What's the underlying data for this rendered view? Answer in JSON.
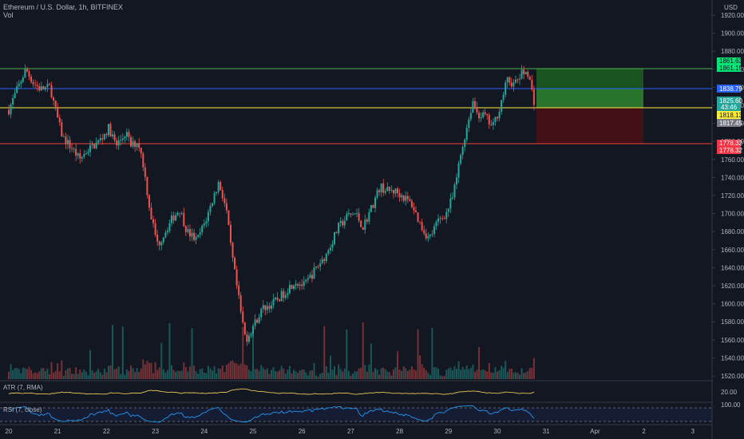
{
  "header": {
    "symbol_title": "Ethereum / U.S. Dollar, 1h, BITFINEX",
    "volume_label": "Vol"
  },
  "axis": {
    "currency": "USD",
    "price_ticks": [
      "1920.00",
      "1900.00",
      "1880.00",
      "1860.00",
      "1840.00",
      "1820.00",
      "1800.00",
      "1780.00",
      "1760.00",
      "1740.00",
      "1720.00",
      "1700.00",
      "1680.00",
      "1660.00",
      "1640.00",
      "1620.00",
      "1600.00",
      "1580.00",
      "1560.00",
      "1540.00",
      "1520.00"
    ],
    "date_ticks": [
      "20",
      "21",
      "22",
      "23",
      "24",
      "25",
      "26",
      "27",
      "28",
      "29",
      "30",
      "31",
      "Apr",
      "2",
      "3"
    ]
  },
  "price_tags": {
    "target_1": "1861.63",
    "target_2": "1861.15",
    "blue_level": "1838.79",
    "current": "1825.60",
    "countdown": "43:46",
    "entry": "1818.13",
    "gray": "1817.45",
    "stop_1": "1778.32",
    "stop_2": "1778.32"
  },
  "indicators": {
    "atr_label": "ATR (7, RMA)",
    "atr_value": "20.00",
    "rsi_label": "RSI (7, close)",
    "rsi_value": "100.00"
  },
  "colors": {
    "background": "#131722",
    "up": "#26a69a",
    "down": "#ef5350",
    "target_line": "#4caf50",
    "blue_line": "#2962ff",
    "entry_line": "#ffeb3b",
    "stop_line": "#f44336",
    "profit_zone": "#1b5e20",
    "loss_zone": "#4a1016",
    "atr_line": "#e8c55a",
    "rsi_line": "#2196f3"
  },
  "chart_data": {
    "type": "candlestick",
    "symbol": "ETHUSD",
    "interval": "1h",
    "price_range": [
      1520,
      1925
    ],
    "levels": {
      "target": 1861.63,
      "blue": 1838.79,
      "entry": 1818.13,
      "stop": 1778.32
    },
    "path": [
      [
        20.0,
        1815
      ],
      [
        20.15,
        1835
      ],
      [
        20.35,
        1860
      ],
      [
        20.5,
        1845
      ],
      [
        20.65,
        1838
      ],
      [
        20.85,
        1840
      ],
      [
        20.95,
        1815
      ],
      [
        21.1,
        1785
      ],
      [
        21.3,
        1772
      ],
      [
        21.45,
        1760
      ],
      [
        21.6,
        1770
      ],
      [
        21.85,
        1780
      ],
      [
        22.05,
        1795
      ],
      [
        22.2,
        1775
      ],
      [
        22.4,
        1790
      ],
      [
        22.5,
        1775
      ],
      [
        22.65,
        1780
      ],
      [
        22.75,
        1755
      ],
      [
        22.9,
        1700
      ],
      [
        23.05,
        1665
      ],
      [
        23.2,
        1680
      ],
      [
        23.35,
        1695
      ],
      [
        23.5,
        1705
      ],
      [
        23.65,
        1680
      ],
      [
        23.85,
        1670
      ],
      [
        24.05,
        1695
      ],
      [
        24.2,
        1720
      ],
      [
        24.3,
        1735
      ],
      [
        24.45,
        1705
      ],
      [
        24.55,
        1660
      ],
      [
        24.65,
        1625
      ],
      [
        24.75,
        1590
      ],
      [
        24.85,
        1560
      ],
      [
        25.0,
        1575
      ],
      [
        25.2,
        1595
      ],
      [
        25.4,
        1600
      ],
      [
        25.6,
        1610
      ],
      [
        25.85,
        1625
      ],
      [
        26.05,
        1620
      ],
      [
        26.3,
        1640
      ],
      [
        26.5,
        1655
      ],
      [
        26.75,
        1685
      ],
      [
        26.95,
        1698
      ],
      [
        27.1,
        1700
      ],
      [
        27.25,
        1685
      ],
      [
        27.45,
        1710
      ],
      [
        27.6,
        1730
      ],
      [
        27.75,
        1725
      ],
      [
        27.9,
        1725
      ],
      [
        28.05,
        1720
      ],
      [
        28.25,
        1710
      ],
      [
        28.45,
        1685
      ],
      [
        28.6,
        1672
      ],
      [
        28.8,
        1693
      ],
      [
        28.95,
        1700
      ],
      [
        29.1,
        1720
      ],
      [
        29.25,
        1765
      ],
      [
        29.35,
        1790
      ],
      [
        29.5,
        1825
      ],
      [
        29.6,
        1810
      ],
      [
        29.75,
        1808
      ],
      [
        29.9,
        1795
      ],
      [
        30.05,
        1818
      ],
      [
        30.2,
        1848
      ],
      [
        30.35,
        1843
      ],
      [
        30.5,
        1855
      ],
      [
        30.62,
        1858
      ],
      [
        30.75,
        1825
      ]
    ],
    "volume_scale_max": 100
  }
}
